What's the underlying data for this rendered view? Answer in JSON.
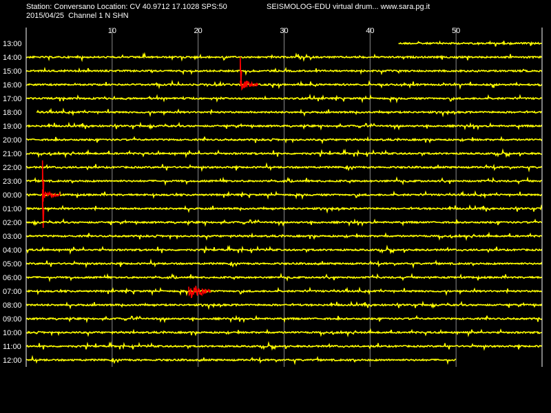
{
  "header": {
    "station_line": "Station: Conversano Location: CV 40.9712 17.1028 SPS:50",
    "date_line": "2015/04/25  Channel 1 N SHN",
    "brand_line": "SEISMOLOG-EDU virtual drum... www.sara.pg.it"
  },
  "colors": {
    "background": "#000000",
    "frame": "#ffffff",
    "grid": "#8a8a8a",
    "trace": "#ffff00",
    "event": "#ff0000",
    "text": "#ffffff"
  },
  "chart_data": {
    "type": "line",
    "title": "",
    "xlabel": "",
    "ylabel": "",
    "x_unit": "minute",
    "xlim": [
      0,
      60
    ],
    "x_ticks": [
      10,
      20,
      30,
      40,
      50
    ],
    "grid": true,
    "rows": [
      {
        "label": "13:00",
        "start_min": 43.3,
        "end_min": 60,
        "events": []
      },
      {
        "label": "14:00",
        "start_min": 0,
        "end_min": 60,
        "events": []
      },
      {
        "label": "15:00",
        "start_min": 0,
        "end_min": 60,
        "events": [
          {
            "start_min": 24.9,
            "end_min": 25.05,
            "amplitude": 1.0,
            "color": "red",
            "kind": "spike"
          }
        ]
      },
      {
        "label": "16:00",
        "start_min": 0,
        "end_min": 60,
        "events": [
          {
            "start_min": 24.9,
            "end_min": 27.0,
            "amplitude": 0.35,
            "color": "red",
            "kind": "coda"
          }
        ]
      },
      {
        "label": "17:00",
        "start_min": 0,
        "end_min": 60,
        "events": []
      },
      {
        "label": "18:00",
        "start_min": 1.2,
        "end_min": 60,
        "events": []
      },
      {
        "label": "19:00",
        "start_min": 0,
        "end_min": 60,
        "events": []
      },
      {
        "label": "20:00",
        "start_min": 0,
        "end_min": 60,
        "events": []
      },
      {
        "label": "21:00",
        "start_min": 0,
        "end_min": 60,
        "events": []
      },
      {
        "label": "22:00",
        "start_min": 0,
        "end_min": 60,
        "events": []
      },
      {
        "label": "23:00",
        "start_min": 0,
        "end_min": 60,
        "events": [
          {
            "start_min": 1.9,
            "end_min": 2.05,
            "amplitude": 1.5,
            "color": "red",
            "kind": "spike"
          }
        ]
      },
      {
        "label": "00:00",
        "start_min": 0,
        "end_min": 60,
        "events": [
          {
            "start_min": 1.9,
            "end_min": 4.0,
            "amplitude": 0.3,
            "color": "red",
            "kind": "coda"
          }
        ]
      },
      {
        "label": "01:00",
        "start_min": 0,
        "end_min": 60,
        "events": [
          {
            "start_min": 1.9,
            "end_min": 2.05,
            "amplitude": 1.4,
            "color": "red",
            "kind": "spike"
          }
        ]
      },
      {
        "label": "02:00",
        "start_min": 0,
        "end_min": 60,
        "events": []
      },
      {
        "label": "03:00",
        "start_min": 0,
        "end_min": 60,
        "events": []
      },
      {
        "label": "04:00",
        "start_min": 0,
        "end_min": 60,
        "events": []
      },
      {
        "label": "05:00",
        "start_min": 0,
        "end_min": 60,
        "events": []
      },
      {
        "label": "06:00",
        "start_min": 0,
        "end_min": 60,
        "events": []
      },
      {
        "label": "07:00",
        "start_min": 0,
        "end_min": 60,
        "events": [
          {
            "start_min": 18.9,
            "end_min": 21.5,
            "amplitude": 0.55,
            "color": "red",
            "kind": "burst"
          }
        ]
      },
      {
        "label": "08:00",
        "start_min": 0,
        "end_min": 60,
        "events": []
      },
      {
        "label": "09:00",
        "start_min": 0,
        "end_min": 60,
        "events": []
      },
      {
        "label": "10:00",
        "start_min": 0,
        "end_min": 60,
        "events": []
      },
      {
        "label": "11:00",
        "start_min": 0,
        "end_min": 60,
        "events": []
      },
      {
        "label": "12:00",
        "start_min": 0,
        "end_min": 50,
        "events": []
      }
    ]
  }
}
